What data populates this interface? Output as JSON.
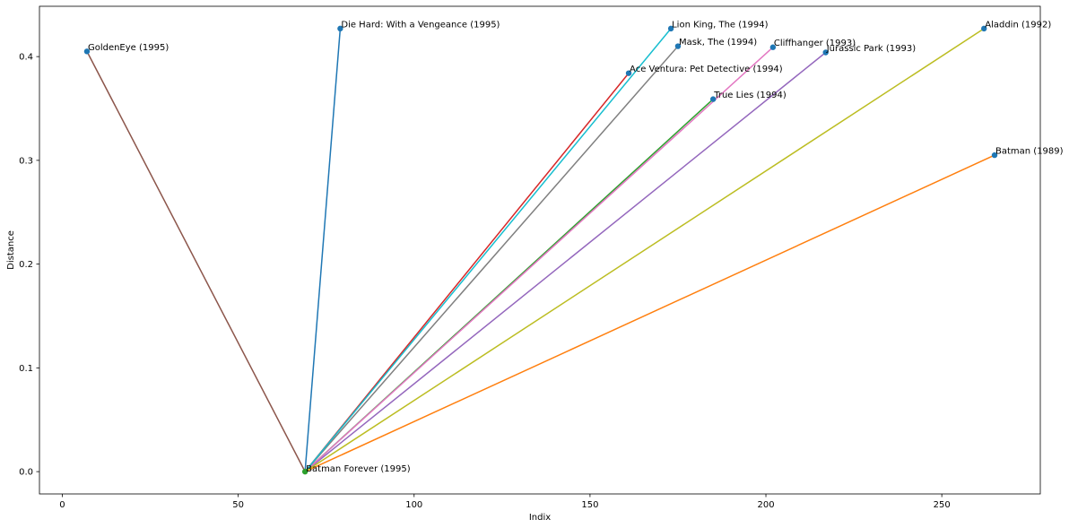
{
  "chart_data": {
    "type": "line",
    "title": "",
    "xlabel": "Indix",
    "ylabel": "Distance",
    "xlim": [
      -6.5,
      278
    ],
    "ylim": [
      -0.0215,
      0.4485
    ],
    "xticks": [
      0,
      50,
      100,
      150,
      200,
      250
    ],
    "yticks": [
      0.0,
      0.1,
      0.2,
      0.3,
      0.4
    ],
    "xtick_labels": [
      "0",
      "50",
      "100",
      "150",
      "200",
      "250"
    ],
    "ytick_labels": [
      "0.0",
      "0.1",
      "0.2",
      "0.3",
      "0.4"
    ],
    "grid": false,
    "legend": false,
    "origin": {
      "x": 69,
      "y": 0.0,
      "label": "Batman Forever (1995)"
    },
    "series": [
      {
        "x": [
          69,
          79
        ],
        "y": [
          0.0,
          0.427
        ],
        "label": "Die Hard: With a Vengeance (1995)",
        "color": "#1f77b4"
      },
      {
        "x": [
          69,
          265
        ],
        "y": [
          0.0,
          0.305
        ],
        "label": "Batman (1989)",
        "color": "#ff7f0e"
      },
      {
        "x": [
          69,
          185
        ],
        "y": [
          0.0,
          0.359
        ],
        "label": "True Lies (1994)",
        "color": "#2ca02c"
      },
      {
        "x": [
          69,
          161
        ],
        "y": [
          0.0,
          0.384
        ],
        "label": "Ace Ventura: Pet Detective (1994)",
        "color": "#d62728"
      },
      {
        "x": [
          69,
          217
        ],
        "y": [
          0.0,
          0.404
        ],
        "label": "Jurassic Park (1993)",
        "color": "#9467bd"
      },
      {
        "x": [
          69,
          7
        ],
        "y": [
          0.0,
          0.405
        ],
        "label": "GoldenEye (1995)",
        "color": "#8c564b"
      },
      {
        "x": [
          69,
          202
        ],
        "y": [
          0.0,
          0.409
        ],
        "label": "Cliffhanger (1993)",
        "color": "#e377c2"
      },
      {
        "x": [
          69,
          175
        ],
        "y": [
          0.0,
          0.41
        ],
        "label": "Mask, The (1994)",
        "color": "#7f7f7f"
      },
      {
        "x": [
          69,
          262
        ],
        "y": [
          0.0,
          0.427
        ],
        "label": "Aladdin (1992)",
        "color": "#bcbd22"
      },
      {
        "x": [
          69,
          173
        ],
        "y": [
          0.0,
          0.427
        ],
        "label": "Lion King, The (1994)",
        "color": "#17becf"
      }
    ]
  },
  "colors": {
    "marker": "#1f77b4",
    "origin_marker": "#2ca02c",
    "axes": "#000000"
  }
}
